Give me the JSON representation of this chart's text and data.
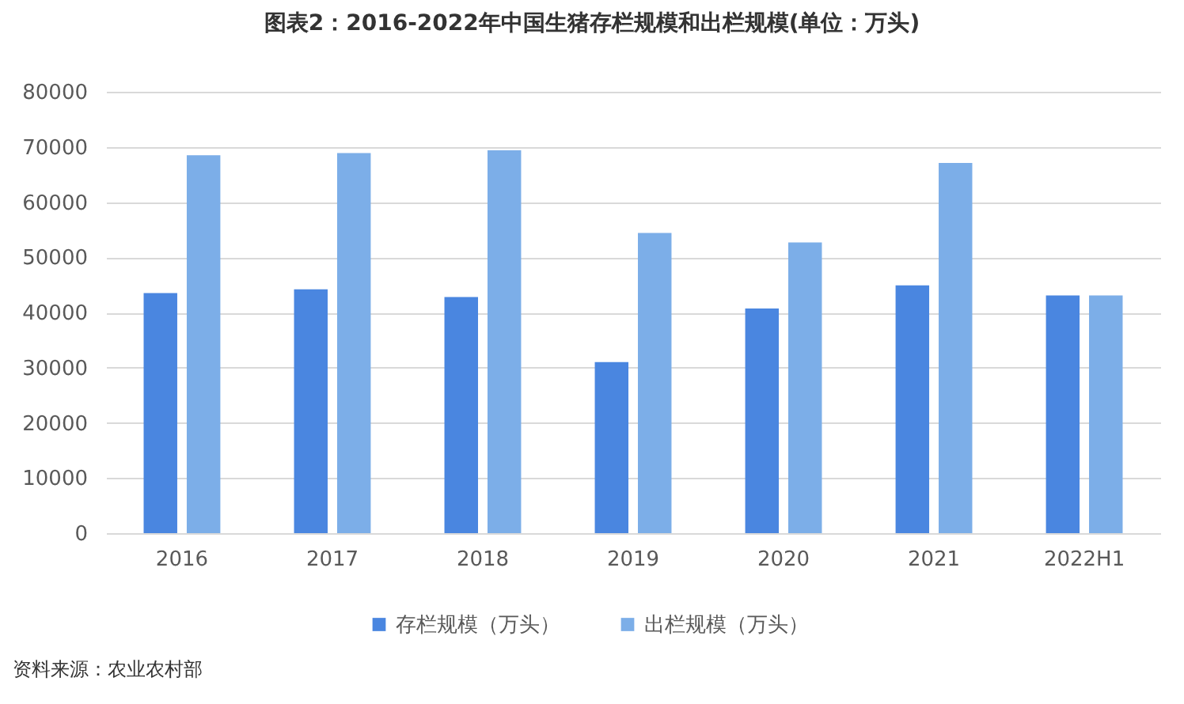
{
  "chart_data": {
    "type": "bar",
    "title": "图表2：2016-2022年中国生猪存栏规模和出栏规模(单位：万头)",
    "categories": [
      "2016",
      "2017",
      "2018",
      "2019",
      "2020",
      "2021",
      "2022H1"
    ],
    "series": [
      {
        "name": "存栏规模（万头）",
        "color": "#4a86e0",
        "values": [
          43500,
          44200,
          42800,
          31000,
          40700,
          44900,
          43100
        ]
      },
      {
        "name": "出栏规模（万头）",
        "color": "#7caee8",
        "values": [
          68500,
          68900,
          69400,
          54400,
          52700,
          67100,
          43100
        ]
      }
    ],
    "ylim": [
      0,
      80000
    ],
    "yticks": [
      0,
      10000,
      20000,
      30000,
      40000,
      50000,
      60000,
      70000,
      80000
    ],
    "grid": "y",
    "legend": "bottom",
    "annotations": [
      "资料来源：农业农村部"
    ]
  }
}
